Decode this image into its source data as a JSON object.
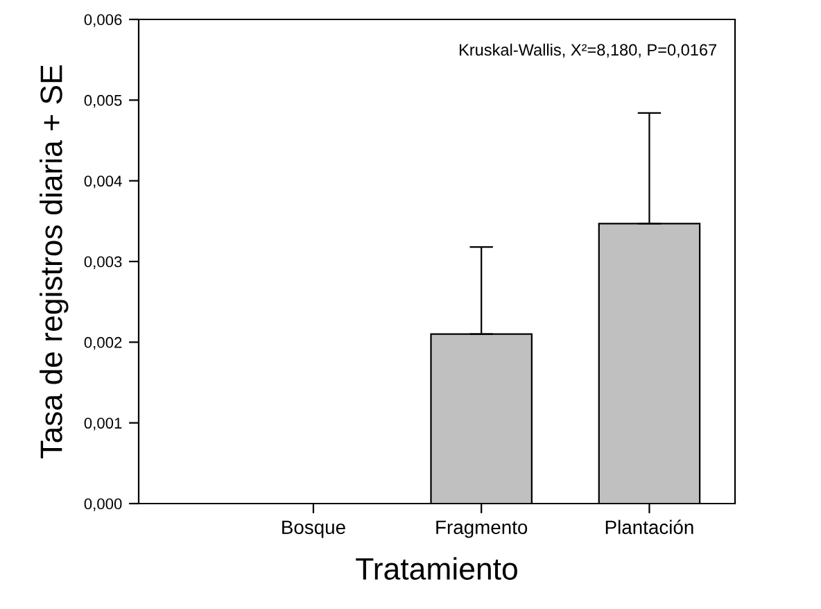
{
  "chart_data": {
    "type": "bar",
    "categories": [
      "Bosque",
      "Fragmento",
      "Plantación"
    ],
    "values": [
      0,
      0.0021,
      0.00347
    ],
    "errors": [
      null,
      [
        0.0021,
        0.00318
      ],
      [
        0.00347,
        0.00484
      ]
    ],
    "color": "#c0c0c0",
    "xlabel": "Tratamiento",
    "ylabel": "Tasa de registros diaria + SE",
    "ylim": [
      0,
      0.006
    ],
    "yticks": [
      {
        "value": 0,
        "label": "0,000"
      },
      {
        "value": 0.001,
        "label": "0,001"
      },
      {
        "value": 0.002,
        "label": "0,002"
      },
      {
        "value": 0.003,
        "label": "0,003"
      },
      {
        "value": 0.004,
        "label": "0,004"
      },
      {
        "value": 0.005,
        "label": "0,005"
      },
      {
        "value": 0.006,
        "label": "0,006"
      }
    ],
    "annotations": [
      "Kruskal-Wallis, X²=8,180, P=0,0167"
    ],
    "grid": false,
    "legend": false
  }
}
